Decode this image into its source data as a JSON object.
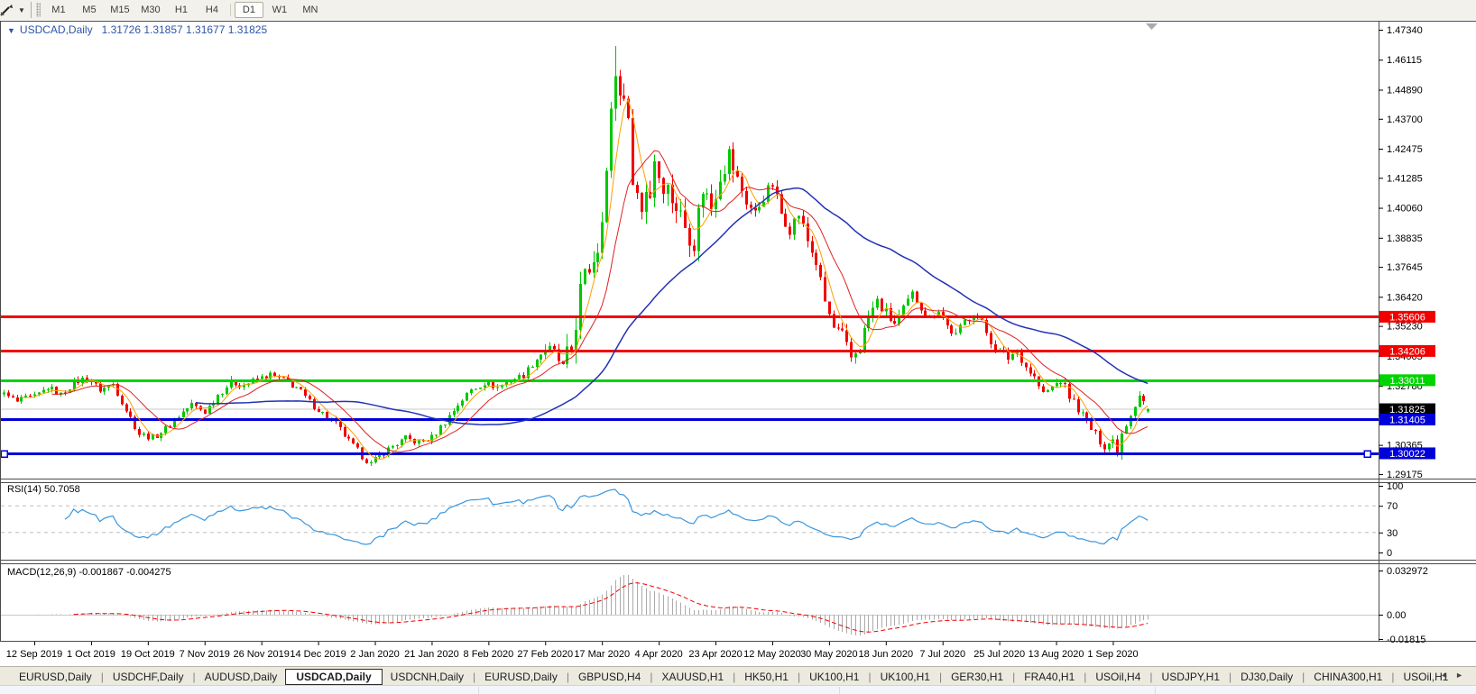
{
  "toolbar": {
    "dropdown_icon": "▼",
    "timeframes": [
      "M1",
      "M5",
      "M15",
      "M30",
      "H1",
      "H4",
      "D1",
      "W1",
      "MN"
    ],
    "active_timeframe": "D1"
  },
  "chart": {
    "title_symbol": "USDCAD,Daily",
    "title_ohlc": "1.31726 1.31857 1.31677 1.31825",
    "title_color": "#2D55A8"
  },
  "price_axis": {
    "ticks": [
      "1.47340",
      "1.46115",
      "1.44890",
      "1.43700",
      "1.42475",
      "1.41285",
      "1.40060",
      "1.38835",
      "1.37645",
      "1.36420",
      "1.35230",
      "1.34005",
      "1.32780",
      "1.31590",
      "1.30365",
      "1.29175"
    ]
  },
  "date_axis": {
    "labels": [
      {
        "label": "12 Sep 2019",
        "i": 0
      },
      {
        "label": "1 Oct 2019",
        "i": 13
      },
      {
        "label": "19 Oct 2019",
        "i": 26
      },
      {
        "label": "7 Nov 2019",
        "i": 39
      },
      {
        "label": "26 Nov 2019",
        "i": 52
      },
      {
        "label": "14 Dec 2019",
        "i": 65
      },
      {
        "label": "2 Jan 2020",
        "i": 78
      },
      {
        "label": "21 Jan 2020",
        "i": 91
      },
      {
        "label": "8 Feb 2020",
        "i": 104
      },
      {
        "label": "27 Feb 2020",
        "i": 117
      },
      {
        "label": "17 Mar 2020",
        "i": 130
      },
      {
        "label": "4 Apr 2020",
        "i": 143
      },
      {
        "label": "23 Apr 2020",
        "i": 156
      },
      {
        "label": "12 May 2020",
        "i": 169
      },
      {
        "label": "30 May 2020",
        "i": 182
      },
      {
        "label": "18 Jun 2020",
        "i": 195
      },
      {
        "label": "7 Jul 2020",
        "i": 208
      },
      {
        "label": "25 Jul 2020",
        "i": 221
      },
      {
        "label": "13 Aug 2020",
        "i": 234
      },
      {
        "label": "1 Sep 2020",
        "i": 247
      }
    ]
  },
  "current_price": {
    "value": 1.31825,
    "label": "1.31825",
    "line_color": "#C8C8C8",
    "badge_color": "#000000"
  },
  "hlines": [
    {
      "value": 1.35606,
      "label": "1.35606",
      "color": "#F20000",
      "handles": false
    },
    {
      "value": 1.34206,
      "label": "1.34206",
      "color": "#F20000",
      "handles": false
    },
    {
      "value": 1.33011,
      "label": "1.33011",
      "color": "#00D400",
      "handles": false
    },
    {
      "value": 1.31405,
      "label": "1.31405",
      "color": "#0000D8",
      "handles": false
    },
    {
      "value": 1.30022,
      "label": "1.30022",
      "color": "#0000D8",
      "handles": true
    }
  ],
  "rsi": {
    "label": "RSI(14) 50.7058",
    "period": 14,
    "current": 50.7058,
    "levels": [
      70,
      30
    ],
    "scale_ticks": [
      {
        "label": "100",
        "v": 100
      },
      {
        "label": "70",
        "v": 70
      },
      {
        "label": "30",
        "v": 30
      },
      {
        "label": "0",
        "v": 0
      }
    ],
    "color": "#3A97DD"
  },
  "macd": {
    "label": "MACD(12,26,9) -0.001867 -0.004275",
    "fast": 12,
    "slow": 26,
    "signal_period": 9,
    "main_value": -0.001867,
    "signal_value": -0.004275,
    "scale_ticks": [
      {
        "label": "0.032972",
        "v": 0.032972
      },
      {
        "label": "0.00",
        "v": 0
      },
      {
        "label": "-0.01815",
        "v": -0.01815
      }
    ],
    "histogram_color": "#ABABAB",
    "signal_color": "#F20000"
  },
  "tabs": {
    "items": [
      {
        "label": "EURUSD,Daily",
        "active": false
      },
      {
        "label": "USDCHF,Daily",
        "active": false
      },
      {
        "label": "AUDUSD,Daily",
        "active": false
      },
      {
        "label": "USDCAD,Daily",
        "active": true
      },
      {
        "label": "USDCNH,Daily",
        "active": false
      },
      {
        "label": "EURUSD,Daily",
        "active": false
      },
      {
        "label": "GBPUSD,H4",
        "active": false
      },
      {
        "label": "XAUUSD,H1",
        "active": false
      },
      {
        "label": "HK50,H1",
        "active": false
      },
      {
        "label": "UK100,H1",
        "active": false
      },
      {
        "label": "UK100,H1",
        "active": false
      },
      {
        "label": "GER30,H1",
        "active": false
      },
      {
        "label": "FRA40,H1",
        "active": false
      },
      {
        "label": "USOil,H4",
        "active": false
      },
      {
        "label": "USDJPY,H1",
        "active": false
      },
      {
        "label": "DJ30,Daily",
        "active": false
      },
      {
        "label": "CHINA300,H1",
        "active": false
      },
      {
        "label": "USOil,H1",
        "active": false
      }
    ],
    "scroll_left": "◄",
    "scroll_right": "►"
  },
  "chart_data": {
    "type": "candlestick",
    "symbol": "USDCAD",
    "timeframe": "Daily",
    "last_candle": {
      "open": 1.31726,
      "high": 1.31857,
      "low": 1.31677,
      "close": 1.31825
    },
    "colors": {
      "up": "#00C800",
      "down": "#F20000",
      "level_dash": "#BDBDBD",
      "zero_line": "#C8C8C8",
      "frame": "#4A4A4A",
      "shift_marker": "#ABABAB"
    },
    "moving_averages": [
      {
        "name": "ma-fast",
        "period": 5,
        "color": "#FF9E00",
        "width": 1
      },
      {
        "name": "ma-mid",
        "period": 12,
        "color": "#E02020",
        "width": 1
      },
      {
        "name": "ma-slow",
        "period": 45,
        "color": "#2233B4",
        "width": 1.5
      }
    ],
    "close_anchors": [
      [
        -7,
        1.3242
      ],
      [
        -4,
        1.3212
      ],
      [
        -2,
        1.3226
      ],
      [
        0,
        1.323
      ],
      [
        3,
        1.3272
      ],
      [
        6,
        1.3242
      ],
      [
        9,
        1.3292
      ],
      [
        12,
        1.3312
      ],
      [
        15,
        1.3262
      ],
      [
        18,
        1.3286
      ],
      [
        21,
        1.318
      ],
      [
        24,
        1.3082
      ],
      [
        27,
        1.3066
      ],
      [
        30,
        1.3102
      ],
      [
        33,
        1.3156
      ],
      [
        36,
        1.3202
      ],
      [
        39,
        1.3172
      ],
      [
        42,
        1.3242
      ],
      [
        45,
        1.3292
      ],
      [
        48,
        1.3282
      ],
      [
        51,
        1.3306
      ],
      [
        54,
        1.3322
      ],
      [
        57,
        1.3302
      ],
      [
        60,
        1.3272
      ],
      [
        63,
        1.3212
      ],
      [
        66,
        1.3166
      ],
      [
        69,
        1.3122
      ],
      [
        72,
        1.3052
      ],
      [
        75,
        1.2992
      ],
      [
        77,
        1.2958
      ],
      [
        79,
        1.2992
      ],
      [
        82,
        1.3032
      ],
      [
        85,
        1.3062
      ],
      [
        88,
        1.3046
      ],
      [
        91,
        1.3066
      ],
      [
        94,
        1.3132
      ],
      [
        97,
        1.3202
      ],
      [
        100,
        1.3262
      ],
      [
        103,
        1.3292
      ],
      [
        106,
        1.3272
      ],
      [
        109,
        1.3302
      ],
      [
        112,
        1.3322
      ],
      [
        115,
        1.3392
      ],
      [
        117,
        1.3432
      ],
      [
        119,
        1.3412
      ],
      [
        121,
        1.3352
      ],
      [
        123,
        1.3422
      ],
      [
        125,
        1.3662
      ],
      [
        127,
        1.3762
      ],
      [
        129,
        1.3852
      ],
      [
        130,
        1.3998
      ],
      [
        131,
        1.4152
      ],
      [
        132,
        1.4382
      ],
      [
        133,
        1.4562
      ],
      [
        134,
        1.4462
      ],
      [
        135,
        1.4492
      ],
      [
        136,
        1.4332
      ],
      [
        137,
        1.4152
      ],
      [
        138,
        1.4062
      ],
      [
        139,
        1.3992
      ],
      [
        140,
        1.4092
      ],
      [
        141,
        1.4062
      ],
      [
        142,
        1.4212
      ],
      [
        143,
        1.4142
      ],
      [
        145,
        1.4082
      ],
      [
        147,
        1.4012
      ],
      [
        149,
        1.3932
      ],
      [
        151,
        1.3872
      ],
      [
        153,
        1.4092
      ],
      [
        155,
        1.4012
      ],
      [
        157,
        1.4152
      ],
      [
        159,
        1.4222
      ],
      [
        161,
        1.4122
      ],
      [
        163,
        1.4032
      ],
      [
        165,
        1.3982
      ],
      [
        167,
        1.4052
      ],
      [
        169,
        1.4102
      ],
      [
        171,
        1.3982
      ],
      [
        173,
        1.3922
      ],
      [
        175,
        1.3982
      ],
      [
        177,
        1.3872
      ],
      [
        179,
        1.3782
      ],
      [
        181,
        1.3622
      ],
      [
        183,
        1.3512
      ],
      [
        185,
        1.3482
      ],
      [
        187,
        1.3392
      ],
      [
        189,
        1.3442
      ],
      [
        191,
        1.3562
      ],
      [
        193,
        1.3622
      ],
      [
        195,
        1.3572
      ],
      [
        197,
        1.3532
      ],
      [
        199,
        1.3582
      ],
      [
        201,
        1.3652
      ],
      [
        203,
        1.3602
      ],
      [
        205,
        1.3552
      ],
      [
        207,
        1.3592
      ],
      [
        209,
        1.3522
      ],
      [
        211,
        1.3482
      ],
      [
        213,
        1.3542
      ],
      [
        215,
        1.3582
      ],
      [
        217,
        1.3532
      ],
      [
        219,
        1.3462
      ],
      [
        221,
        1.3415
      ],
      [
        223,
        1.3392
      ],
      [
        225,
        1.3425
      ],
      [
        227,
        1.3356
      ],
      [
        229,
        1.3312
      ],
      [
        231,
        1.3242
      ],
      [
        233,
        1.3272
      ],
      [
        235,
        1.3302
      ],
      [
        237,
        1.3236
      ],
      [
        239,
        1.3186
      ],
      [
        241,
        1.3126
      ],
      [
        243,
        1.3076
      ],
      [
        245,
        1.3036
      ],
      [
        247,
        1.3056
      ],
      [
        248,
        1.3012
      ],
      [
        249,
        1.3086
      ],
      [
        250,
        1.3126
      ],
      [
        251,
        1.3166
      ],
      [
        252,
        1.3206
      ],
      [
        253,
        1.3246
      ],
      [
        254,
        1.3216
      ],
      [
        255,
        1.31825
      ]
    ],
    "vol_zones": [
      [
        -7,
        114,
        0.002
      ],
      [
        115,
        121,
        0.0035
      ],
      [
        122,
        160,
        0.0075
      ],
      [
        161,
        200,
        0.0038
      ],
      [
        201,
        255,
        0.0028
      ]
    ],
    "extreme_overrides": [
      {
        "i": 133,
        "high": 1.4668
      },
      {
        "i": 77,
        "low": 1.2951
      },
      {
        "i": 248,
        "low": 1.2994
      }
    ]
  }
}
